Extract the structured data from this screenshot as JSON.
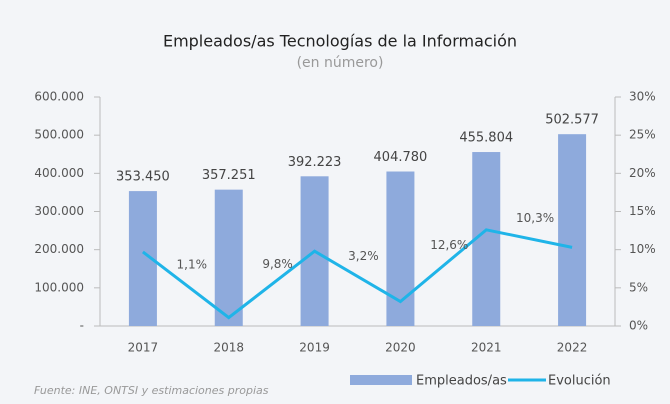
{
  "chart_data": {
    "type": "bar_line",
    "title": "Empleados/as Tecnologías de la Información",
    "subtitle": "(en número)",
    "source": "Fuente: INE, ONTSI y estimaciones propias",
    "categories": [
      "2017",
      "2018",
      "2019",
      "2020",
      "2021",
      "2022"
    ],
    "series": [
      {
        "name": "Empleados/as",
        "type": "bar",
        "color": "#8eaadc",
        "values": [
          353450,
          357251,
          392223,
          404780,
          455804,
          502577
        ],
        "value_labels": [
          "353.450",
          "357.251",
          "392.223",
          "404.780",
          "455.804",
          "502.577"
        ]
      },
      {
        "name": "Evolución",
        "type": "line",
        "axis": "y2",
        "color": "#1fb4e8",
        "values": [
          9.7,
          1.1,
          9.8,
          3.2,
          12.6,
          10.3
        ],
        "value_labels": [
          null,
          "1,1%",
          "9,8%",
          "3,2%",
          "12,6%",
          "10,3%"
        ]
      }
    ],
    "ylim": [
      0,
      600000
    ],
    "yticks": [
      {
        "value": 0,
        "label": "-"
      },
      {
        "value": 100000,
        "label": "100.000"
      },
      {
        "value": 200000,
        "label": "200.000"
      },
      {
        "value": 300000,
        "label": "300.000"
      },
      {
        "value": 400000,
        "label": "400.000"
      },
      {
        "value": 500000,
        "label": "500.000"
      },
      {
        "value": 600000,
        "label": "600.000"
      }
    ],
    "y2lim": [
      0,
      30
    ],
    "y2ticks": [
      {
        "value": 0,
        "label": "0%"
      },
      {
        "value": 5,
        "label": "5%"
      },
      {
        "value": 10,
        "label": "10%"
      },
      {
        "value": 15,
        "label": "15%"
      },
      {
        "value": 20,
        "label": "20%"
      },
      {
        "value": 25,
        "label": "25%"
      },
      {
        "value": 30,
        "label": "30%"
      }
    ],
    "legend": "bottom-right"
  }
}
